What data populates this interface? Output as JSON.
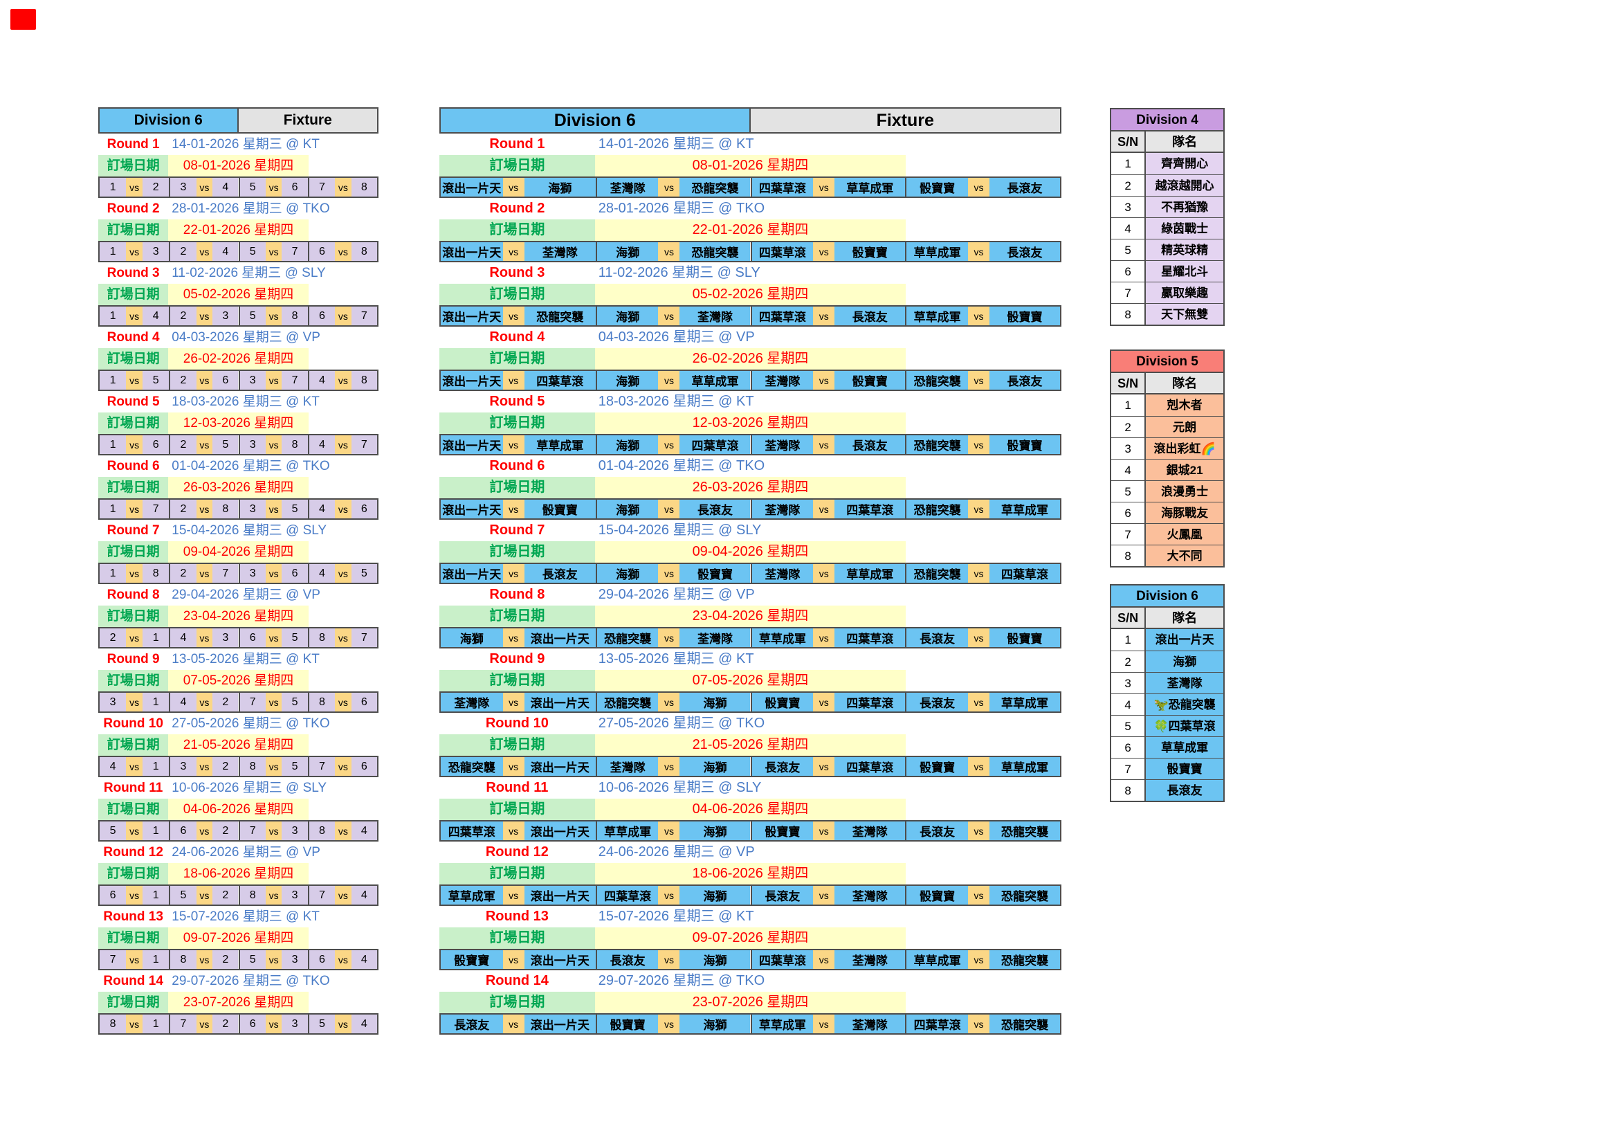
{
  "colors": {
    "blue": "#6CC4F2",
    "grayhdr": "#E3E3E3",
    "purple": "#D7CCE8",
    "orange": "#FBD786",
    "greenbg": "#C9F0C9",
    "greentx": "#00A651",
    "yellowbg": "#FFFFC8",
    "redtx": "#FE0000",
    "datetx": "#4A7CC7",
    "bd": "#4D4D4D",
    "d4_header": "#C99CE0",
    "d4_cell": "#E4D4F1",
    "d5_header": "#F97E77",
    "d5_cell": "#FBBF9B",
    "d6_header": "#6CC4F2",
    "d6_cell": "#6CC4F2"
  },
  "vs_label": "vs",
  "left_table": {
    "division_label": "Division 6",
    "fixture_label": "Fixture",
    "booking_label": "訂場日期",
    "rounds": [
      {
        "round": "Round 1",
        "match_date": "14-01-2026 星期三 @ KT",
        "booking_date": "08-01-2026 星期四",
        "pairs": [
          [
            "1",
            "2"
          ],
          [
            "3",
            "4"
          ],
          [
            "5",
            "6"
          ],
          [
            "7",
            "8"
          ]
        ]
      },
      {
        "round": "Round 2",
        "match_date": "28-01-2026 星期三 @ TKO",
        "booking_date": "22-01-2026 星期四",
        "pairs": [
          [
            "1",
            "3"
          ],
          [
            "2",
            "4"
          ],
          [
            "5",
            "7"
          ],
          [
            "6",
            "8"
          ]
        ]
      },
      {
        "round": "Round 3",
        "match_date": "11-02-2026 星期三 @ SLY",
        "booking_date": "05-02-2026 星期四",
        "pairs": [
          [
            "1",
            "4"
          ],
          [
            "2",
            "3"
          ],
          [
            "5",
            "8"
          ],
          [
            "6",
            "7"
          ]
        ]
      },
      {
        "round": "Round 4",
        "match_date": "04-03-2026 星期三 @ VP",
        "booking_date": "26-02-2026 星期四",
        "pairs": [
          [
            "1",
            "5"
          ],
          [
            "2",
            "6"
          ],
          [
            "3",
            "7"
          ],
          [
            "4",
            "8"
          ]
        ]
      },
      {
        "round": "Round 5",
        "match_date": "18-03-2026 星期三 @ KT",
        "booking_date": "12-03-2026 星期四",
        "pairs": [
          [
            "1",
            "6"
          ],
          [
            "2",
            "5"
          ],
          [
            "3",
            "8"
          ],
          [
            "4",
            "7"
          ]
        ]
      },
      {
        "round": "Round 6",
        "match_date": "01-04-2026 星期三 @ TKO",
        "booking_date": "26-03-2026 星期四",
        "pairs": [
          [
            "1",
            "7"
          ],
          [
            "2",
            "8"
          ],
          [
            "3",
            "5"
          ],
          [
            "4",
            "6"
          ]
        ]
      },
      {
        "round": "Round 7",
        "match_date": "15-04-2026 星期三 @ SLY",
        "booking_date": "09-04-2026 星期四",
        "pairs": [
          [
            "1",
            "8"
          ],
          [
            "2",
            "7"
          ],
          [
            "3",
            "6"
          ],
          [
            "4",
            "5"
          ]
        ]
      },
      {
        "round": "Round 8",
        "match_date": "29-04-2026 星期三 @ VP",
        "booking_date": "23-04-2026 星期四",
        "pairs": [
          [
            "2",
            "1"
          ],
          [
            "4",
            "3"
          ],
          [
            "6",
            "5"
          ],
          [
            "8",
            "7"
          ]
        ]
      },
      {
        "round": "Round 9",
        "match_date": "13-05-2026 星期三 @ KT",
        "booking_date": "07-05-2026 星期四",
        "pairs": [
          [
            "3",
            "1"
          ],
          [
            "4",
            "2"
          ],
          [
            "7",
            "5"
          ],
          [
            "8",
            "6"
          ]
        ]
      },
      {
        "round": "Round 10",
        "match_date": "27-05-2026 星期三 @ TKO",
        "booking_date": "21-05-2026 星期四",
        "pairs": [
          [
            "4",
            "1"
          ],
          [
            "3",
            "2"
          ],
          [
            "8",
            "5"
          ],
          [
            "7",
            "6"
          ]
        ]
      },
      {
        "round": "Round 11",
        "match_date": "10-06-2026 星期三 @ SLY",
        "booking_date": "04-06-2026 星期四",
        "pairs": [
          [
            "5",
            "1"
          ],
          [
            "6",
            "2"
          ],
          [
            "7",
            "3"
          ],
          [
            "8",
            "4"
          ]
        ]
      },
      {
        "round": "Round 12",
        "match_date": "24-06-2026 星期三 @ VP",
        "booking_date": "18-06-2026 星期四",
        "pairs": [
          [
            "6",
            "1"
          ],
          [
            "5",
            "2"
          ],
          [
            "8",
            "3"
          ],
          [
            "7",
            "4"
          ]
        ]
      },
      {
        "round": "Round 13",
        "match_date": "15-07-2026 星期三 @ KT",
        "booking_date": "09-07-2026 星期四",
        "pairs": [
          [
            "7",
            "1"
          ],
          [
            "8",
            "2"
          ],
          [
            "5",
            "3"
          ],
          [
            "6",
            "4"
          ]
        ]
      },
      {
        "round": "Round 14",
        "match_date": "29-07-2026 星期三 @ TKO",
        "booking_date": "23-07-2026 星期四",
        "pairs": [
          [
            "8",
            "1"
          ],
          [
            "7",
            "2"
          ],
          [
            "6",
            "3"
          ],
          [
            "5",
            "4"
          ]
        ]
      }
    ]
  },
  "middle_table": {
    "division_label": "Division 6",
    "fixture_label": "Fixture",
    "booking_label": "訂場日期",
    "rounds": [
      {
        "round": "Round 1",
        "match_date": "14-01-2026 星期三 @ KT",
        "booking_date": "08-01-2026 星期四",
        "pairs": [
          [
            "滾出一片天",
            "海獅"
          ],
          [
            "荃灣隊",
            "恐龍突襲"
          ],
          [
            "四葉草滾",
            "草草成軍"
          ],
          [
            "骰寶寶",
            "長滾友"
          ]
        ]
      },
      {
        "round": "Round 2",
        "match_date": "28-01-2026 星期三 @ TKO",
        "booking_date": "22-01-2026 星期四",
        "pairs": [
          [
            "滾出一片天",
            "荃灣隊"
          ],
          [
            "海獅",
            "恐龍突襲"
          ],
          [
            "四葉草滾",
            "骰寶寶"
          ],
          [
            "草草成軍",
            "長滾友"
          ]
        ]
      },
      {
        "round": "Round 3",
        "match_date": "11-02-2026 星期三 @ SLY",
        "booking_date": "05-02-2026 星期四",
        "pairs": [
          [
            "滾出一片天",
            "恐龍突襲"
          ],
          [
            "海獅",
            "荃灣隊"
          ],
          [
            "四葉草滾",
            "長滾友"
          ],
          [
            "草草成軍",
            "骰寶寶"
          ]
        ]
      },
      {
        "round": "Round 4",
        "match_date": "04-03-2026 星期三 @ VP",
        "booking_date": "26-02-2026 星期四",
        "pairs": [
          [
            "滾出一片天",
            "四葉草滾"
          ],
          [
            "海獅",
            "草草成軍"
          ],
          [
            "荃灣隊",
            "骰寶寶"
          ],
          [
            "恐龍突襲",
            "長滾友"
          ]
        ]
      },
      {
        "round": "Round 5",
        "match_date": "18-03-2026 星期三 @ KT",
        "booking_date": "12-03-2026 星期四",
        "pairs": [
          [
            "滾出一片天",
            "草草成軍"
          ],
          [
            "海獅",
            "四葉草滾"
          ],
          [
            "荃灣隊",
            "長滾友"
          ],
          [
            "恐龍突襲",
            "骰寶寶"
          ]
        ]
      },
      {
        "round": "Round 6",
        "match_date": "01-04-2026 星期三 @ TKO",
        "booking_date": "26-03-2026 星期四",
        "pairs": [
          [
            "滾出一片天",
            "骰寶寶"
          ],
          [
            "海獅",
            "長滾友"
          ],
          [
            "荃灣隊",
            "四葉草滾"
          ],
          [
            "恐龍突襲",
            "草草成軍"
          ]
        ]
      },
      {
        "round": "Round 7",
        "match_date": "15-04-2026 星期三 @ SLY",
        "booking_date": "09-04-2026 星期四",
        "pairs": [
          [
            "滾出一片天",
            "長滾友"
          ],
          [
            "海獅",
            "骰寶寶"
          ],
          [
            "荃灣隊",
            "草草成軍"
          ],
          [
            "恐龍突襲",
            "四葉草滾"
          ]
        ]
      },
      {
        "round": "Round 8",
        "match_date": "29-04-2026 星期三 @ VP",
        "booking_date": "23-04-2026 星期四",
        "pairs": [
          [
            "海獅",
            "滾出一片天"
          ],
          [
            "恐龍突襲",
            "荃灣隊"
          ],
          [
            "草草成軍",
            "四葉草滾"
          ],
          [
            "長滾友",
            "骰寶寶"
          ]
        ]
      },
      {
        "round": "Round 9",
        "match_date": "13-05-2026 星期三 @ KT",
        "booking_date": "07-05-2026 星期四",
        "pairs": [
          [
            "荃灣隊",
            "滾出一片天"
          ],
          [
            "恐龍突襲",
            "海獅"
          ],
          [
            "骰寶寶",
            "四葉草滾"
          ],
          [
            "長滾友",
            "草草成軍"
          ]
        ]
      },
      {
        "round": "Round 10",
        "match_date": "27-05-2026 星期三 @ TKO",
        "booking_date": "21-05-2026 星期四",
        "pairs": [
          [
            "恐龍突襲",
            "滾出一片天"
          ],
          [
            "荃灣隊",
            "海獅"
          ],
          [
            "長滾友",
            "四葉草滾"
          ],
          [
            "骰寶寶",
            "草草成軍"
          ]
        ]
      },
      {
        "round": "Round 11",
        "match_date": "10-06-2026 星期三 @ SLY",
        "booking_date": "04-06-2026 星期四",
        "pairs": [
          [
            "四葉草滾",
            "滾出一片天"
          ],
          [
            "草草成軍",
            "海獅"
          ],
          [
            "骰寶寶",
            "荃灣隊"
          ],
          [
            "長滾友",
            "恐龍突襲"
          ]
        ]
      },
      {
        "round": "Round 12",
        "match_date": "24-06-2026 星期三 @ VP",
        "booking_date": "18-06-2026 星期四",
        "pairs": [
          [
            "草草成軍",
            "滾出一片天"
          ],
          [
            "四葉草滾",
            "海獅"
          ],
          [
            "長滾友",
            "荃灣隊"
          ],
          [
            "骰寶寶",
            "恐龍突襲"
          ]
        ]
      },
      {
        "round": "Round 13",
        "match_date": "15-07-2026 星期三 @ KT",
        "booking_date": "09-07-2026 星期四",
        "pairs": [
          [
            "骰寶寶",
            "滾出一片天"
          ],
          [
            "長滾友",
            "海獅"
          ],
          [
            "四葉草滾",
            "荃灣隊"
          ],
          [
            "草草成軍",
            "恐龍突襲"
          ]
        ]
      },
      {
        "round": "Round 14",
        "match_date": "29-07-2026 星期三 @ TKO",
        "booking_date": "23-07-2026 星期四",
        "pairs": [
          [
            "長滾友",
            "滾出一片天"
          ],
          [
            "骰寶寶",
            "海獅"
          ],
          [
            "草草成軍",
            "荃灣隊"
          ],
          [
            "四葉草滾",
            "恐龍突襲"
          ]
        ]
      }
    ]
  },
  "division_tables": [
    {
      "id": "div4-card",
      "title": "Division 4",
      "sn_header": "S/N",
      "name_header": "隊名",
      "header_color": "#C99CE0",
      "cell_color": "#E4D4F1",
      "teams": [
        "齊齊開心",
        "越滾越開心",
        "不再猶豫",
        "綠茵戰士",
        "精英球精",
        "星耀北斗",
        "贏取樂趣",
        "天下無雙"
      ]
    },
    {
      "id": "div5-card",
      "title": "Division 5",
      "sn_header": "S/N",
      "name_header": "隊名",
      "header_color": "#F97E77",
      "cell_color": "#FBBF9B",
      "teams": [
        "剋木者",
        "元朗",
        "滾出彩虹🌈",
        "銀城21",
        "浪漫勇士",
        "海豚戰友",
        "火鳳凰",
        "大不同"
      ]
    },
    {
      "id": "div6-card",
      "title": "Division 6",
      "sn_header": "S/N",
      "name_header": "隊名",
      "header_color": "#6CC4F2",
      "cell_color": "#6CC4F2",
      "teams": [
        "滾出一片天",
        "海獅",
        "荃灣隊",
        "🦖恐龍突襲",
        "🍀四葉草滾",
        "草草成軍",
        "骰寶寶",
        "長滾友"
      ]
    }
  ]
}
